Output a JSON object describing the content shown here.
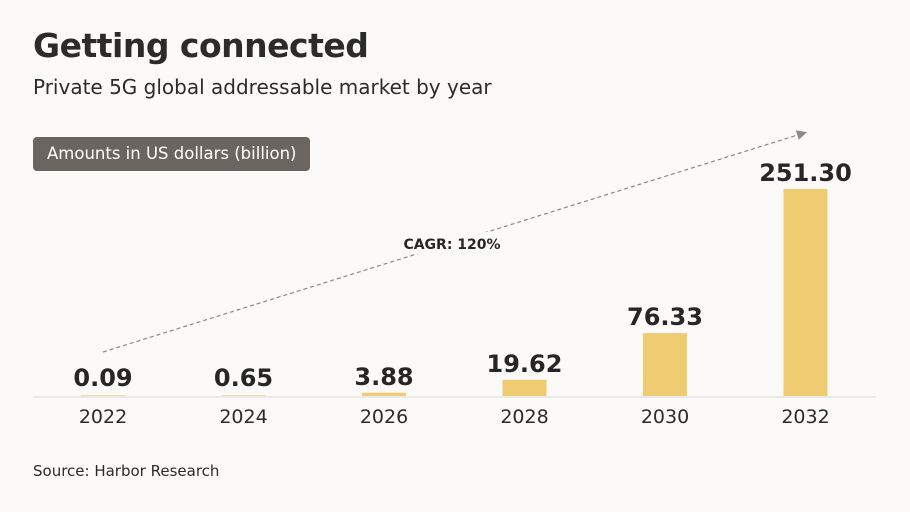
{
  "header": {
    "title": "Getting connected",
    "subtitle": "Private 5G global addressable market by year",
    "unit_badge": "Amounts in US dollars (billion)"
  },
  "footer": {
    "source": "Source: Harbor Research"
  },
  "colors": {
    "bar": "#efcb72",
    "badge_bg": "#6b6560",
    "axis": "#e6e3df",
    "trend": "#8a8a8a"
  },
  "chart_data": {
    "type": "bar",
    "title": "Getting connected",
    "subtitle": "Private 5G global addressable market by year",
    "xlabel": "",
    "ylabel": "Amounts in US dollars (billion)",
    "categories": [
      "2022",
      "2024",
      "2026",
      "2028",
      "2030",
      "2032"
    ],
    "values": [
      0.09,
      0.65,
      3.88,
      19.62,
      76.33,
      251.3
    ],
    "value_labels": [
      "0.09",
      "0.65",
      "3.88",
      "19.62",
      "76.33",
      "251.30"
    ],
    "ylim": [
      0,
      251.3
    ],
    "grid": false,
    "legend": "none",
    "annotations": [
      {
        "type": "trend-arrow",
        "text": "CAGR: 120%",
        "from": "2022",
        "to": "2032"
      }
    ]
  }
}
